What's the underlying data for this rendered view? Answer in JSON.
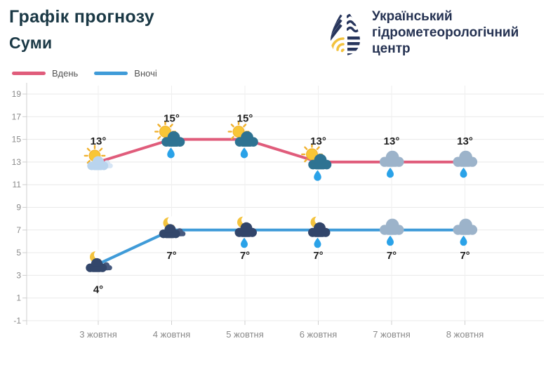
{
  "page": {
    "title": "Графік прогнозу",
    "subtitle": "Суми"
  },
  "logo": {
    "line1": "Український",
    "line2": "гідрометеорологічний",
    "line3": "центр",
    "navy": "#27355c",
    "yellow": "#f2c23e"
  },
  "legend": [
    {
      "label": "Вдень",
      "color": "#e05c7b"
    },
    {
      "label": "Вночі",
      "color": "#3f9bd8"
    }
  ],
  "chart_data": {
    "type": "line",
    "categories": [
      "3 жовтня",
      "4 жовтня",
      "5 жовтня",
      "6 жовтня",
      "7 жовтня",
      "8 жовтня"
    ],
    "series": [
      {
        "name": "Вдень",
        "color": "#e05c7b",
        "values": [
          13,
          15,
          15,
          13,
          13,
          13
        ],
        "labels": [
          "13°",
          "15°",
          "15°",
          "13°",
          "13°",
          "13°"
        ],
        "icons": [
          "sun-cloud",
          "sun-cloud-rain",
          "sun-cloud-rain",
          "sun-cloud-rain",
          "cloud-rain",
          "cloud-rain"
        ],
        "label_position": "above"
      },
      {
        "name": "Вночі",
        "color": "#3f9bd8",
        "values": [
          4,
          7,
          7,
          7,
          7,
          7
        ],
        "labels": [
          "4°",
          "7°",
          "7°",
          "7°",
          "7°",
          "7°"
        ],
        "icons": [
          "moon-cloud",
          "moon-cloud",
          "moon-cloud-rain",
          "moon-cloud-rain",
          "cloud-rain",
          "cloud-rain"
        ],
        "label_position": "below"
      }
    ],
    "yticks": [
      19,
      17,
      15,
      13,
      11,
      9,
      7,
      5,
      3,
      1,
      -1
    ],
    "ylim": [
      -1,
      19
    ],
    "grid": true,
    "legend_position": "top-left"
  }
}
